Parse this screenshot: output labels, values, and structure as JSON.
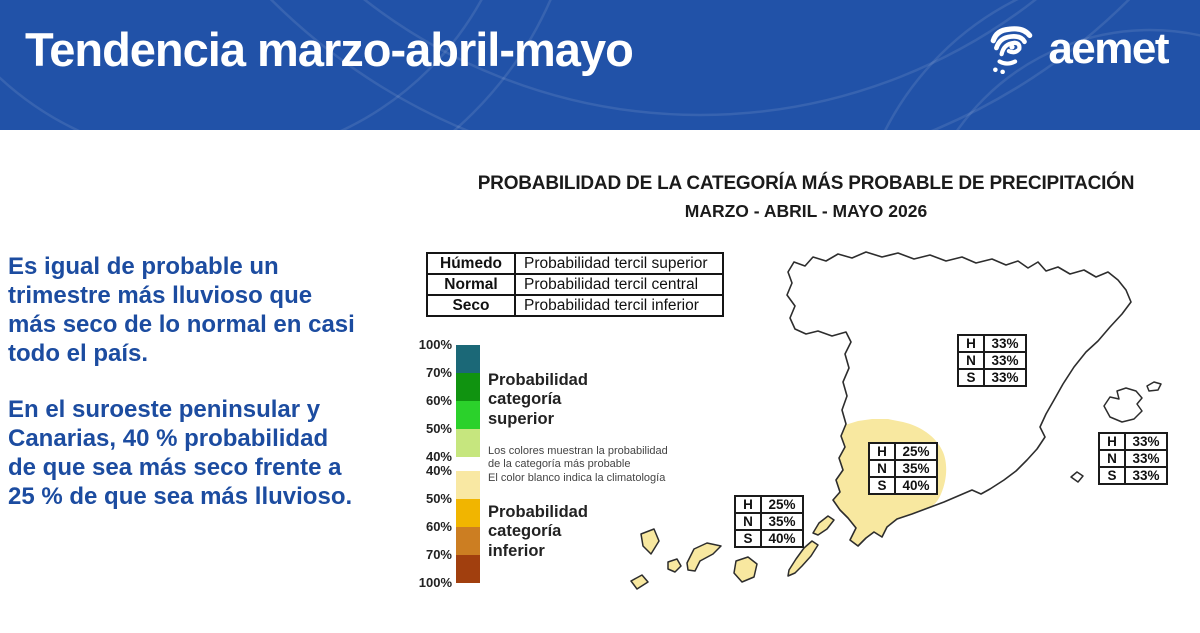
{
  "header": {
    "title": "Tendencia marzo-abril-mayo",
    "logo_text": "aemet",
    "bg_color": "#2152a8"
  },
  "summary": {
    "paragraph1": "Es igual de probable un\ntrimestre más lluvioso que\nmás seco de lo normal en casi\ntodo el país.",
    "paragraph2": "En el suroeste peninsular y\nCanarias, 40 % probabilidad\nde que sea más seco frente a\n25 % de que sea más lluvioso.",
    "text_color": "#1c4ca0"
  },
  "chart_data": {
    "type": "heatmap",
    "title": "PROBABILIDAD DE LA CATEGORÍA MÁS PROBABLE DE PRECIPITACIÓN",
    "subtitle": "MARZO - ABRIL - MAYO 2026",
    "category_table": [
      {
        "category": "Húmedo",
        "description": "Probabilidad tercil superior"
      },
      {
        "category": "Normal",
        "description": "Probabilidad tercil central"
      },
      {
        "category": "Seco",
        "description": "Probabilidad tercil inferior"
      }
    ],
    "row_codes": [
      "H",
      "N",
      "S"
    ],
    "regions": [
      {
        "name": "peninsula",
        "H": "33%",
        "N": "33%",
        "S": "33%",
        "shaded": false
      },
      {
        "name": "suroeste-peninsular",
        "H": "25%",
        "N": "35%",
        "S": "40%",
        "shaded": true
      },
      {
        "name": "baleares",
        "H": "33%",
        "N": "33%",
        "S": "33%",
        "shaded": false
      },
      {
        "name": "canarias",
        "H": "25%",
        "N": "35%",
        "S": "40%",
        "shaded": true
      }
    ],
    "scale": {
      "upper": {
        "label": "Probabilidad\ncategoría\nsuperior",
        "edges": [
          "100%",
          "70%",
          "60%",
          "50%",
          "40%"
        ],
        "colors": [
          "#1b6877",
          "#109310",
          "#2bd12b",
          "#c6e67e"
        ]
      },
      "lower": {
        "label": "Probabilidad\ncategoría\ninferior",
        "edges": [
          "40%",
          "50%",
          "60%",
          "70%",
          "100%"
        ],
        "colors": [
          "#f9e8a3",
          "#f1b500",
          "#cc7e22",
          "#a13f0e"
        ]
      },
      "note": "Los colores muestran la probabilidad\nde la categoría más probable\nEl color blanco indica la climatología"
    },
    "map_shaded_color": "#f8e8a0",
    "map_outline_color": "#2d2d2d"
  }
}
